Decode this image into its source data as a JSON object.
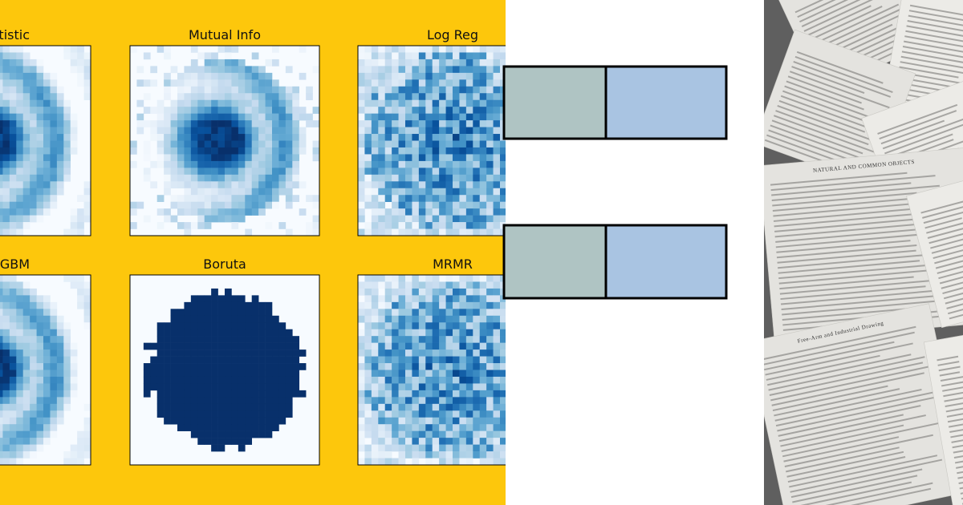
{
  "panels": [
    {
      "title": "tistic"
    },
    {
      "title": "Mutual Info"
    },
    {
      "title": "Log Reg"
    },
    {
      "title": "GBM"
    },
    {
      "title": "Boruta"
    },
    {
      "title": "MRMR"
    }
  ],
  "book": {
    "heading_1": "NATURAL AND COMMON OBJECTS",
    "heading_2": "Free-Arm and Industrial Drawing"
  }
}
